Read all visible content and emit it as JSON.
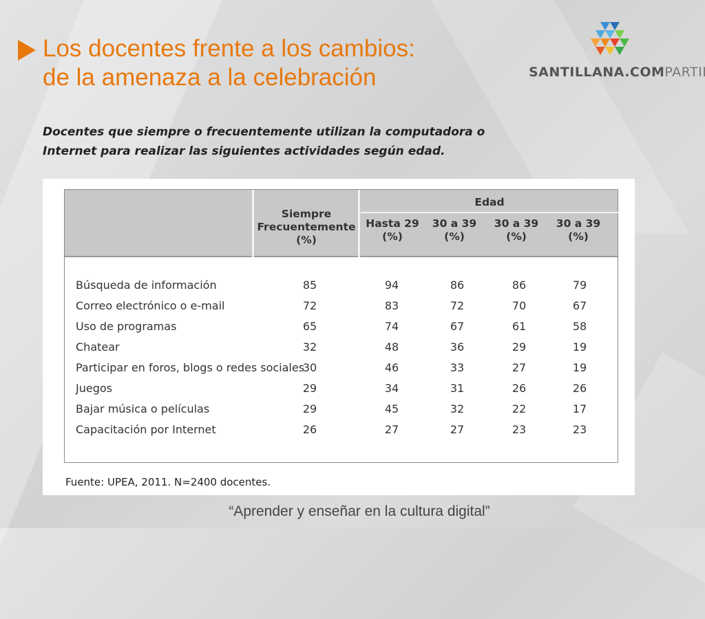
{
  "slide": {
    "title_line1": "Los docentes frente a los cambios:",
    "title_line2": "de la amenaza a la celebración",
    "caption": "Docentes que siempre o frecuentemente utilizan la computadora o Internet para realizar las siguientes actividades según edad.",
    "footer": "“Aprender y enseñar en la cultura digital”"
  },
  "logo": {
    "text_bold": "SANTILLANA.COM",
    "text_light": "PARTIR"
  },
  "colors": {
    "accent": "#e8780e",
    "header_bg": "#c8c8c8"
  },
  "table": {
    "header_siempre": [
      "Siempre",
      "Frecuentemente",
      "(%)"
    ],
    "header_group": "Edad",
    "age_columns": [
      [
        "Hasta 29",
        "(%)"
      ],
      [
        "30 a 39",
        "(%)"
      ],
      [
        "30 a 39",
        "(%)"
      ],
      [
        "30 a 39",
        "(%)"
      ]
    ],
    "rows": [
      {
        "label": "Búsqueda de información",
        "values": [
          "85",
          "94",
          "86",
          "86",
          "79"
        ]
      },
      {
        "label": "Correo electrónico o e-mail",
        "values": [
          "72",
          "83",
          "72",
          "70",
          "67"
        ]
      },
      {
        "label": "Uso de programas",
        "values": [
          "65",
          "74",
          "67",
          "61",
          "58"
        ]
      },
      {
        "label": "Chatear",
        "values": [
          "32",
          "48",
          "36",
          "29",
          "19"
        ]
      },
      {
        "label": "Participar en foros, blogs o redes sociales",
        "values": [
          "30",
          "46",
          "33",
          "27",
          "19"
        ]
      },
      {
        "label": "Juegos",
        "values": [
          "29",
          "34",
          "31",
          "26",
          "26"
        ]
      },
      {
        "label": "Bajar música o películas",
        "values": [
          "29",
          "45",
          "32",
          "22",
          "17"
        ]
      },
      {
        "label": "Capacitación por Internet",
        "values": [
          "26",
          "27",
          "27",
          "23",
          "23"
        ]
      }
    ],
    "source": "Fuente: UPEA, 2011. N=2400 docentes."
  }
}
